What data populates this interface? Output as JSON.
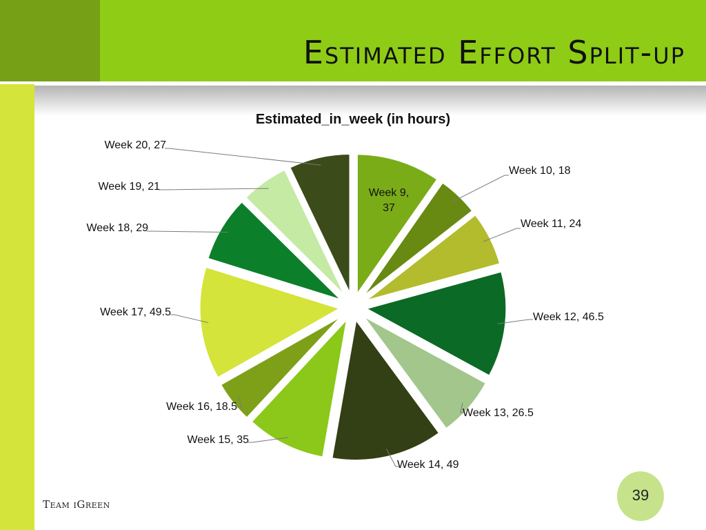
{
  "slide": {
    "title": "Estimated Effort Split-up",
    "footer": "Team iGreen",
    "page_number": "39"
  },
  "colors": {
    "header_dark": "#76a016",
    "header_bright": "#8fcc15",
    "left_strip": "#d4e43a",
    "page_circle": "#c6e38c"
  },
  "chart_data": {
    "type": "pie",
    "title": "Estimated_in_week (in hours)",
    "legend": "none",
    "categories": [
      "Week 9",
      "Week 10",
      "Week 11",
      "Week 12",
      "Week 13",
      "Week 14",
      "Week 15",
      "Week 16",
      "Week 17",
      "Week 18",
      "Week 19",
      "Week 20"
    ],
    "values": [
      37,
      18,
      24,
      46.5,
      26.5,
      49,
      35,
      18.5,
      49.5,
      29,
      21,
      27
    ],
    "labels": [
      "Week 9, 37",
      "Week 10, 18",
      "Week 11, 24",
      "Week 12, 46.5",
      "Week 13, 26.5",
      "Week 14, 49",
      "Week 15, 35",
      "Week 16, 18.5",
      "Week 17, 49.5",
      "Week 18, 29",
      "Week 19, 21",
      "Week 20, 27"
    ],
    "colors": [
      "#7aac18",
      "#688a12",
      "#b2bc2c",
      "#0b6a25",
      "#a2c68c",
      "#333f14",
      "#8bc81a",
      "#7ea018",
      "#d4e43a",
      "#0c7f2a",
      "#c4eaa4",
      "#3b4b1a"
    ],
    "exploded": true
  }
}
